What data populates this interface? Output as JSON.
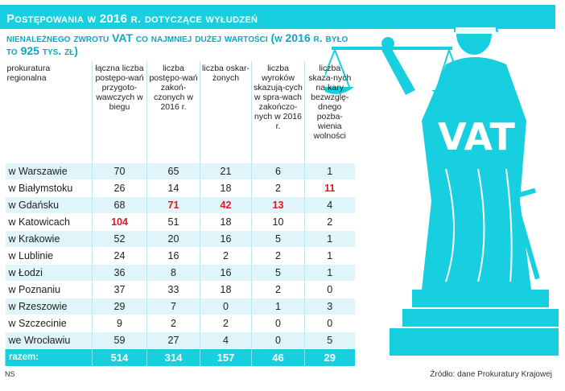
{
  "title": "Postępowania w 2016 r. dotyczące wyłudzeń",
  "subtitle": "nienależnego zwrotu VAT co najmniej dużej wartości (w 2016 r. było to 925 tys. zł)",
  "vat_text": "VAT",
  "footer_left": "NS",
  "footer_right": "Źródło: dane Prokuratury Krajowej",
  "colors": {
    "accent": "#18cfe0",
    "highlight": "#d81b23",
    "row_shade": "#dff5f9"
  },
  "chart_data": {
    "type": "table",
    "title": "Postępowania w 2016 r. dotyczące wyłudzeń",
    "columns": [
      "prokuratura regionalna",
      "łączna liczba postępo-wań przygoto-wawczych w biegu",
      "liczba postępo-wań zakoń-czonych w 2016 r.",
      "liczba oskar-żonych",
      "liczba wyroków skazują-cych w spra-wach zakończo-nych w 2016 r.",
      "liczba skaza-nych na kary bezwzglę-dnego pozba-wienia wolności"
    ],
    "rows": [
      [
        "w Warszawie",
        "70",
        "65",
        "21",
        "6",
        "1"
      ],
      [
        "w Białymstoku",
        "26",
        "14",
        "18",
        "2",
        "11"
      ],
      [
        "w Gdańsku",
        "68",
        "71",
        "42",
        "13",
        "4"
      ],
      [
        "w Katowicach",
        "104",
        "51",
        "18",
        "10",
        "2"
      ],
      [
        "w Krakowie",
        "52",
        "20",
        "16",
        "5",
        "1"
      ],
      [
        "w Lublinie",
        "24",
        "16",
        "2",
        "2",
        "1"
      ],
      [
        "w Łodzi",
        "36",
        "8",
        "16",
        "5",
        "1"
      ],
      [
        "w Poznaniu",
        "37",
        "33",
        "18",
        "2",
        "0"
      ],
      [
        "w Rzeszowie",
        "29",
        "7",
        "0",
        "1",
        "3"
      ],
      [
        "w Szczecinie",
        "9",
        "2",
        "2",
        "0",
        "0"
      ],
      [
        "we Wrocławiu",
        "59",
        "27",
        "4",
        "0",
        "5"
      ]
    ],
    "total": [
      "razem:",
      "514",
      "314",
      "157",
      "46",
      "29"
    ],
    "highlighted": [
      [
        1,
        5
      ],
      [
        2,
        2
      ],
      [
        2,
        3
      ],
      [
        2,
        4
      ],
      [
        3,
        1
      ]
    ]
  }
}
